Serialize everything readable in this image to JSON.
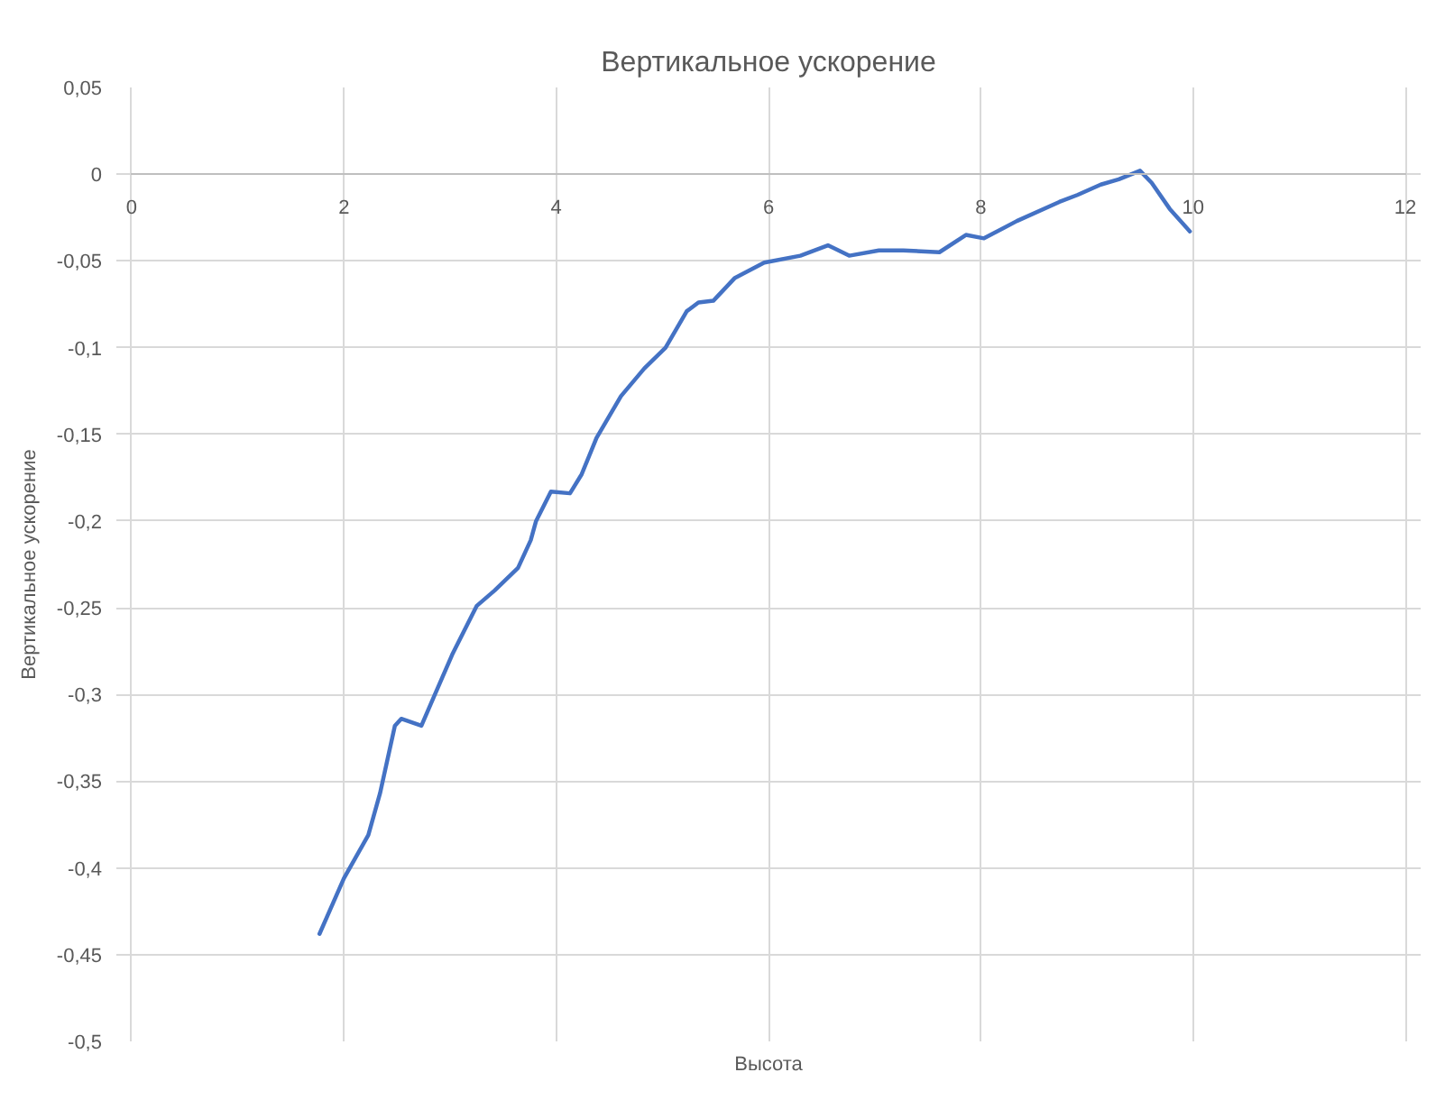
{
  "chart_data": {
    "type": "line",
    "title": "Вертикальное ускорение",
    "xlabel": "Высота",
    "ylabel": "Вертикальное ускорение",
    "x": [
      1.77,
      2.0,
      2.23,
      2.34,
      2.48,
      2.54,
      2.73,
      2.85,
      3.02,
      3.25,
      3.42,
      3.64,
      3.76,
      3.81,
      3.95,
      4.13,
      4.24,
      4.38,
      4.61,
      4.83,
      5.03,
      5.23,
      5.34,
      5.48,
      5.68,
      5.96,
      6.3,
      6.56,
      6.76,
      7.04,
      7.27,
      7.61,
      7.86,
      8.03,
      8.34,
      8.74,
      8.91,
      9.13,
      9.3,
      9.5,
      9.61,
      9.78,
      9.97
    ],
    "series": [
      {
        "color": "#4472c4",
        "values": [
          -0.438,
          -0.406,
          -0.381,
          -0.357,
          -0.318,
          -0.314,
          -0.318,
          -0.301,
          -0.277,
          -0.249,
          -0.24,
          -0.227,
          -0.211,
          -0.2,
          -0.183,
          -0.184,
          -0.173,
          -0.152,
          -0.128,
          -0.112,
          -0.1,
          -0.079,
          -0.074,
          -0.073,
          -0.06,
          -0.051,
          -0.047,
          -0.041,
          -0.047,
          -0.044,
          -0.044,
          -0.045,
          -0.035,
          -0.037,
          -0.027,
          -0.016,
          -0.012,
          -0.006,
          -0.003,
          0.002,
          -0.005,
          -0.02,
          -0.033
        ]
      }
    ],
    "xlim": [
      0,
      12
    ],
    "xticks": [
      0,
      2,
      4,
      6,
      8,
      10,
      12
    ],
    "ylim": [
      -0.5,
      0.05
    ],
    "yticks": [
      {
        "value": 0.05,
        "label": "0,05"
      },
      0,
      {
        "value": -0.05,
        "label": "-0,05"
      },
      {
        "value": -0.1,
        "label": "-0,1"
      },
      {
        "value": -0.15,
        "label": "-0,15"
      },
      {
        "value": -0.2,
        "label": "-0,2"
      },
      {
        "value": -0.25,
        "label": "-0,25"
      },
      {
        "value": -0.3,
        "label": "-0,3"
      },
      {
        "value": -0.35,
        "label": "-0,35"
      },
      {
        "value": -0.4,
        "label": "-0,4"
      },
      {
        "value": -0.45,
        "label": "-0,45"
      },
      {
        "value": -0.5,
        "label": "-0,5"
      }
    ],
    "grid": true
  }
}
